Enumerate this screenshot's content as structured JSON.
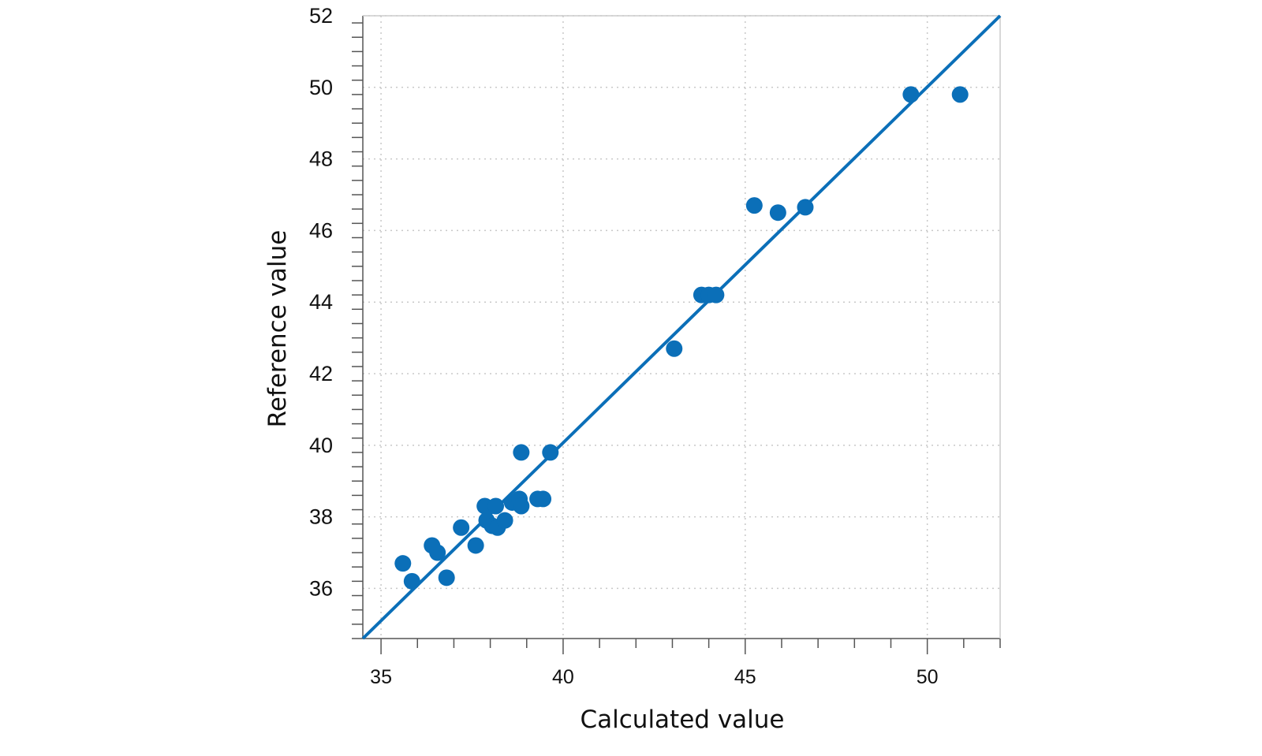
{
  "chart_data": {
    "type": "scatter",
    "xlabel": "Calculated value",
    "ylabel": "Reference value",
    "xlim": [
      34.5,
      52
    ],
    "ylim": [
      34.6,
      52
    ],
    "x_ticks": [
      35,
      40,
      45,
      50
    ],
    "y_ticks": [
      36,
      38,
      40,
      42,
      44,
      46,
      48,
      50,
      52
    ],
    "grid": true,
    "reference_line": {
      "from": [
        34.5,
        34.6
      ],
      "to": [
        52,
        52
      ]
    },
    "series": [
      {
        "color": "#0b6fb8",
        "points": [
          [
            35.6,
            36.7
          ],
          [
            35.85,
            36.2
          ],
          [
            36.4,
            37.2
          ],
          [
            36.55,
            37.0
          ],
          [
            36.8,
            36.3
          ],
          [
            37.2,
            37.7
          ],
          [
            37.6,
            37.2
          ],
          [
            37.85,
            38.3
          ],
          [
            37.9,
            37.9
          ],
          [
            38.05,
            37.75
          ],
          [
            38.15,
            38.3
          ],
          [
            38.2,
            37.7
          ],
          [
            38.4,
            37.9
          ],
          [
            38.6,
            38.4
          ],
          [
            38.8,
            38.5
          ],
          [
            38.85,
            38.3
          ],
          [
            38.85,
            39.8
          ],
          [
            39.3,
            38.5
          ],
          [
            39.45,
            38.5
          ],
          [
            39.65,
            39.8
          ],
          [
            43.05,
            42.7
          ],
          [
            43.8,
            44.2
          ],
          [
            44.0,
            44.2
          ],
          [
            44.2,
            44.2
          ],
          [
            45.25,
            46.7
          ],
          [
            45.9,
            46.5
          ],
          [
            46.65,
            46.65
          ],
          [
            49.55,
            49.8
          ],
          [
            50.9,
            49.8
          ]
        ]
      }
    ]
  }
}
